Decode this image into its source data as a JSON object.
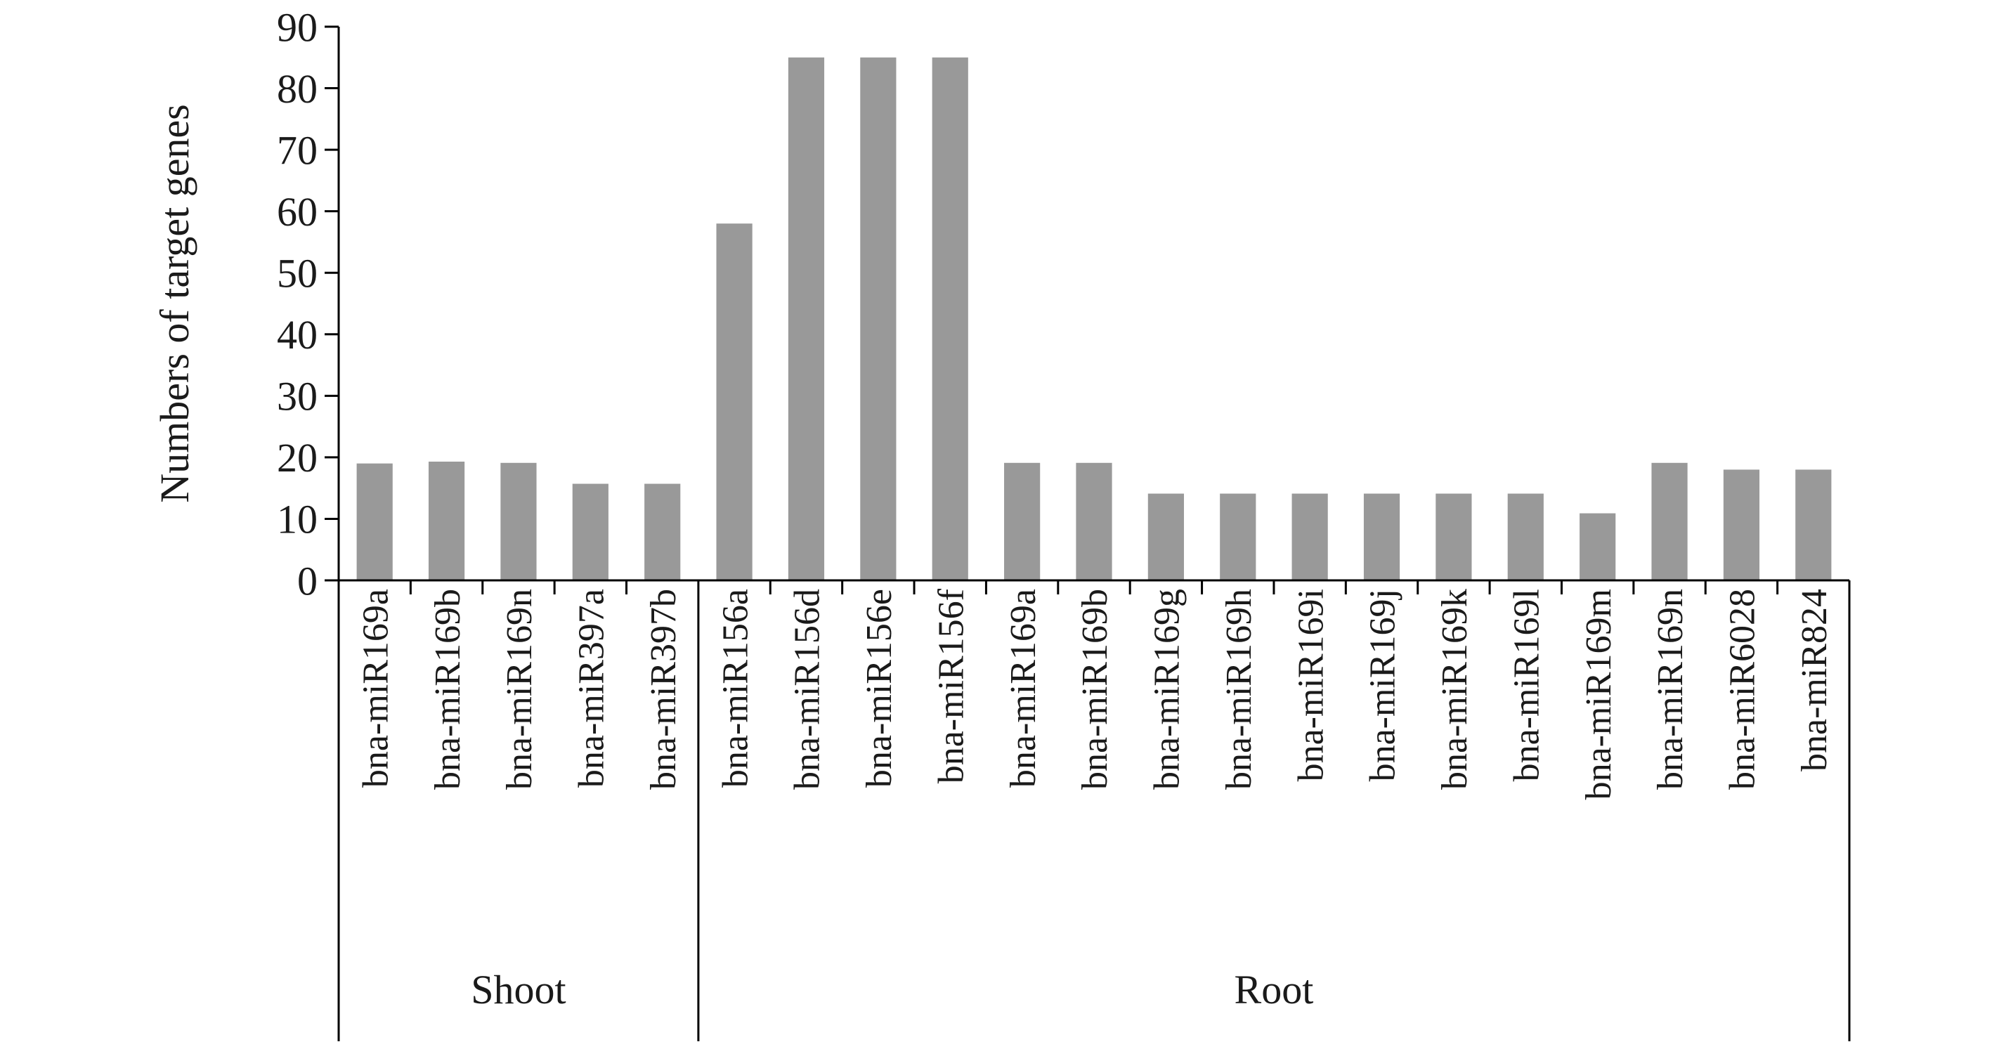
{
  "chart_data": {
    "type": "bar",
    "ylabel": "Numbers of target genes",
    "ylim": [
      0,
      90
    ],
    "yticks": [
      0,
      10,
      20,
      30,
      40,
      50,
      60,
      70,
      80,
      90
    ],
    "bar_color": "#999999",
    "axis_color": "#000000",
    "grid": false,
    "groups": [
      {
        "name": "Shoot",
        "categories": [
          "bna-miR169a",
          "bna-miR169b",
          "bna-miR169n",
          "bna-miR397a",
          "bna-miR397b"
        ]
      },
      {
        "name": "Root",
        "categories": [
          "bna-miR156a",
          "bna-miR156d",
          "bna-miR156e",
          "bna-miR156f",
          "bna-miR169a",
          "bna-miR169b",
          "bna-miR169g",
          "bna-miR169h",
          "bna-miR169i",
          "bna-miR169j",
          "bna-miR169k",
          "bna-miR169l",
          "bna-miR169m",
          "bna-miR169n",
          "bna-miR6028",
          "bna-miR824"
        ]
      }
    ],
    "values": [
      19,
      19.3,
      19.1,
      15.7,
      15.7,
      58,
      85,
      85,
      85,
      19.1,
      19.1,
      14.1,
      14.1,
      14.1,
      14.1,
      14.1,
      14.1,
      10.9,
      19.1,
      18,
      18
    ]
  }
}
